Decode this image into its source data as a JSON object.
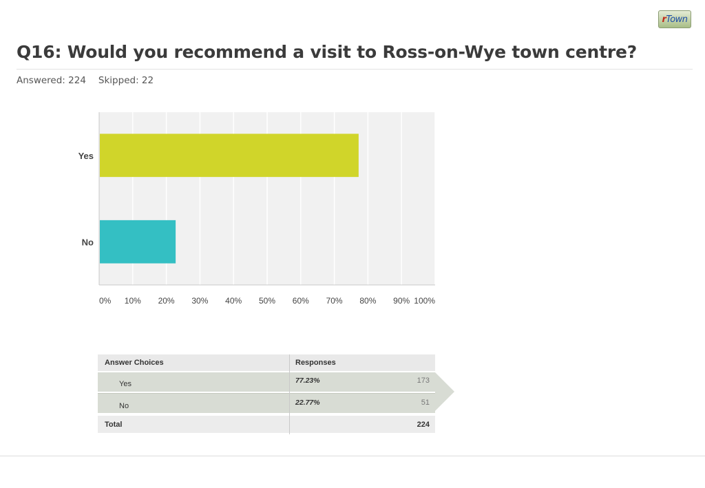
{
  "logo": {
    "prefix": "r",
    "rest": "Town"
  },
  "question": {
    "title": "Q16: Would you recommend a visit to Ross-on-Wye town centre?",
    "answered": "Answered: 224",
    "skipped": "Skipped: 22"
  },
  "colors": {
    "yes": "#d0d52a",
    "no": "#34bfc3",
    "plot_bg": "#f1f1f1",
    "gridline": "#ffffff"
  },
  "chart_data": {
    "type": "bar",
    "orientation": "horizontal",
    "categories": [
      "Yes",
      "No"
    ],
    "values": [
      77.23,
      22.77
    ],
    "value_unit": "%",
    "xlim": [
      0,
      100
    ],
    "x_ticks": [
      "0%",
      "10%",
      "20%",
      "30%",
      "40%",
      "50%",
      "60%",
      "70%",
      "80%",
      "90%",
      "100%"
    ],
    "title": "",
    "xlabel": "",
    "ylabel": "",
    "grid": true
  },
  "table": {
    "headers": {
      "choice": "Answer Choices",
      "responses": "Responses"
    },
    "rows": [
      {
        "choice": "Yes",
        "percent": "77.23%",
        "count": "173"
      },
      {
        "choice": "No",
        "percent": "22.77%",
        "count": "51"
      }
    ],
    "total": {
      "label": "Total",
      "count": "224"
    }
  }
}
